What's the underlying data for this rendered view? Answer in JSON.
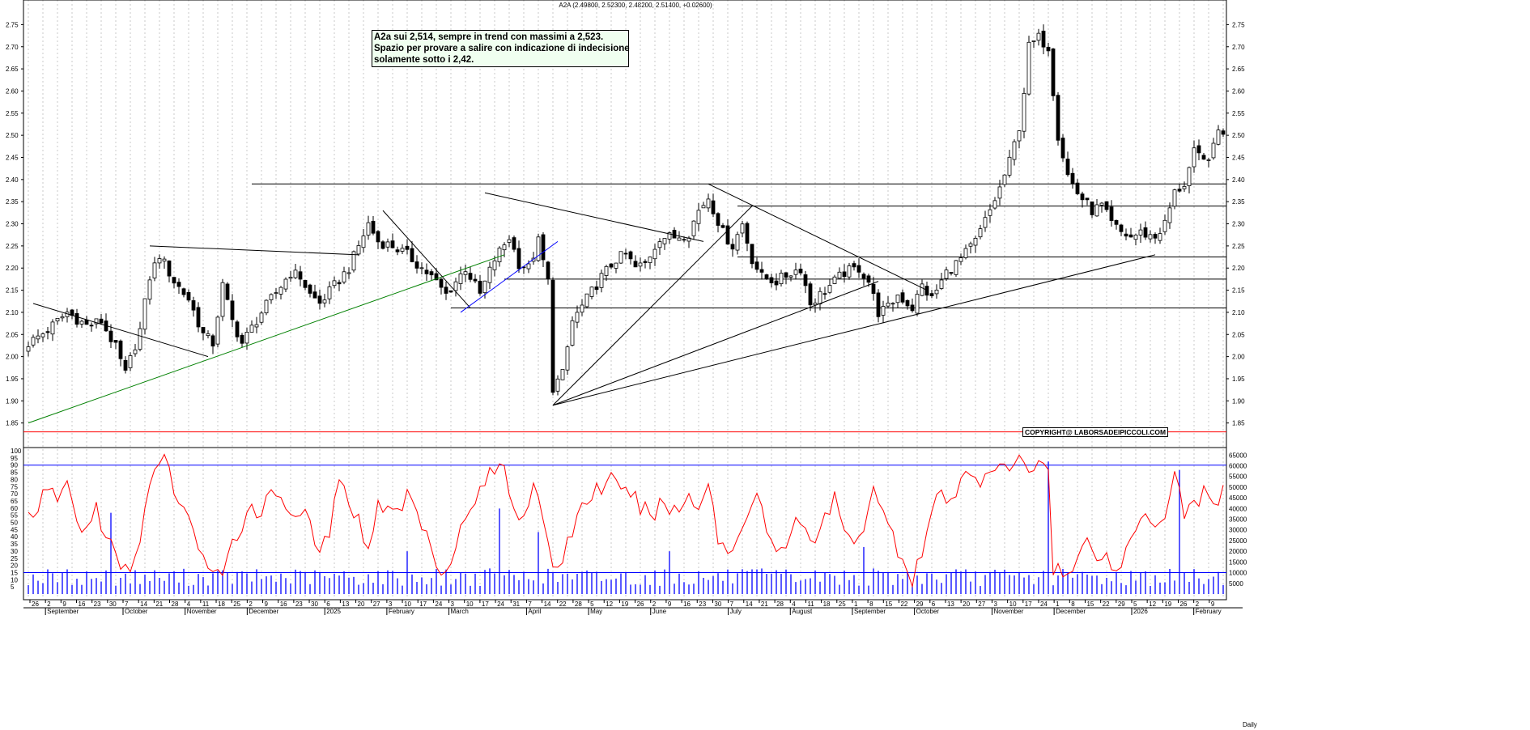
{
  "header": {
    "title": "A2A (2.49800, 2.52300, 2.48200, 2.51400, +0.02600)"
  },
  "annotation": {
    "lines": [
      "A2a sui 2,514, sempre in trend con massimi a 2,523.",
      "Spazio per provare a salire con indicazione di indecisione",
      "solamente sotto i 2,42."
    ]
  },
  "copyright": "COPYRIGHT@ LABORSADEIPICCOLI.COM",
  "chart_data": {
    "type": "candlestick",
    "symbol": "A2A",
    "ohlc_last": {
      "open": 2.498,
      "high": 2.523,
      "low": 2.482,
      "close": 2.514,
      "change": 0.026
    },
    "price_axis": {
      "ylim": [
        1.8,
        2.78
      ],
      "ticks": [
        "1.85",
        "1.90",
        "1.95",
        "2.00",
        "2.05",
        "2.10",
        "2.15",
        "2.20",
        "2.25",
        "2.30",
        "2.35",
        "2.40",
        "2.45",
        "2.50",
        "2.55",
        "2.60",
        "2.65",
        "2.70",
        "2.75"
      ]
    },
    "price_anchors": [
      [
        0,
        2.03
      ],
      [
        4,
        2.06
      ],
      [
        8,
        2.1
      ],
      [
        12,
        2.07
      ],
      [
        15,
        2.08
      ],
      [
        18,
        2.02
      ],
      [
        20,
        1.96
      ],
      [
        23,
        2.06
      ],
      [
        25,
        2.18
      ],
      [
        27,
        2.23
      ],
      [
        30,
        2.17
      ],
      [
        33,
        2.13
      ],
      [
        36,
        2.05
      ],
      [
        38,
        2.03
      ],
      [
        40,
        2.16
      ],
      [
        42,
        2.08
      ],
      [
        44,
        2.03
      ],
      [
        48,
        2.1
      ],
      [
        50,
        2.13
      ],
      [
        54,
        2.19
      ],
      [
        56,
        2.18
      ],
      [
        58,
        2.14
      ],
      [
        60,
        2.12
      ],
      [
        63,
        2.16
      ],
      [
        66,
        2.2
      ],
      [
        70,
        2.3
      ],
      [
        72,
        2.26
      ],
      [
        75,
        2.25
      ],
      [
        78,
        2.23
      ],
      [
        80,
        2.21
      ],
      [
        83,
        2.18
      ],
      [
        86,
        2.14
      ],
      [
        90,
        2.2
      ],
      [
        93,
        2.14
      ],
      [
        96,
        2.22
      ],
      [
        99,
        2.27
      ],
      [
        101,
        2.21
      ],
      [
        103,
        2.2
      ],
      [
        105,
        2.26
      ],
      [
        107,
        2.17
      ],
      [
        108,
        1.93
      ],
      [
        110,
        1.96
      ],
      [
        112,
        2.08
      ],
      [
        115,
        2.13
      ],
      [
        118,
        2.18
      ],
      [
        121,
        2.22
      ],
      [
        123,
        2.23
      ],
      [
        125,
        2.2
      ],
      [
        127,
        2.21
      ],
      [
        130,
        2.27
      ],
      [
        133,
        2.27
      ],
      [
        136,
        2.28
      ],
      [
        138,
        2.33
      ],
      [
        140,
        2.36
      ],
      [
        143,
        2.28
      ],
      [
        145,
        2.25
      ],
      [
        147,
        2.3
      ],
      [
        149,
        2.22
      ],
      [
        151,
        2.18
      ],
      [
        154,
        2.17
      ],
      [
        157,
        2.19
      ],
      [
        159,
        2.2
      ],
      [
        161,
        2.12
      ],
      [
        163,
        2.14
      ],
      [
        166,
        2.17
      ],
      [
        168,
        2.19
      ],
      [
        171,
        2.2
      ],
      [
        173,
        2.17
      ],
      [
        175,
        2.1
      ],
      [
        177,
        2.11
      ],
      [
        179,
        2.14
      ],
      [
        182,
        2.11
      ],
      [
        184,
        2.16
      ],
      [
        186,
        2.13
      ],
      [
        189,
        2.19
      ],
      [
        192,
        2.22
      ],
      [
        195,
        2.26
      ],
      [
        198,
        2.33
      ],
      [
        200,
        2.38
      ],
      [
        202,
        2.44
      ],
      [
        204,
        2.52
      ],
      [
        205,
        2.6
      ],
      [
        206,
        2.7
      ],
      [
        208,
        2.72
      ],
      [
        210,
        2.7
      ],
      [
        212,
        2.5
      ],
      [
        214,
        2.41
      ],
      [
        216,
        2.37
      ],
      [
        219,
        2.33
      ],
      [
        221,
        2.34
      ],
      [
        223,
        2.3
      ],
      [
        225,
        2.28
      ],
      [
        227,
        2.27
      ],
      [
        229,
        2.28
      ],
      [
        232,
        2.27
      ],
      [
        234,
        2.3
      ],
      [
        236,
        2.37
      ],
      [
        238,
        2.39
      ],
      [
        240,
        2.46
      ],
      [
        242,
        2.44
      ],
      [
        244,
        2.47
      ],
      [
        245,
        2.51
      ]
    ],
    "trendlines": [
      {
        "color": "#000000",
        "points": [
          [
            1,
            2.12
          ],
          [
            37,
            2.0
          ]
        ]
      },
      {
        "color": "#000000",
        "points": [
          [
            25,
            2.25
          ],
          [
            68,
            2.23
          ]
        ]
      },
      {
        "color": "#008000",
        "points": [
          [
            0,
            1.85
          ],
          [
            98,
            2.23
          ]
        ]
      },
      {
        "color": "#000000",
        "points": [
          [
            73,
            2.33
          ],
          [
            91,
            2.11
          ]
        ]
      },
      {
        "color": "#0000ff",
        "points": [
          [
            89,
            2.1
          ],
          [
            109,
            2.26
          ]
        ]
      },
      {
        "color": "#000000",
        "points": [
          [
            94,
            2.37
          ],
          [
            139,
            2.26
          ]
        ]
      },
      {
        "color": "#000000",
        "points": [
          [
            108,
            1.89
          ],
          [
            149,
            2.34
          ]
        ]
      },
      {
        "color": "#000000",
        "points": [
          [
            108,
            1.89
          ],
          [
            175,
            2.17
          ]
        ]
      },
      {
        "color": "#000000",
        "points": [
          [
            108,
            1.89
          ],
          [
            232,
            2.23
          ]
        ]
      },
      {
        "color": "#000000",
        "points": [
          [
            140,
            2.39
          ],
          [
            185,
            2.15
          ]
        ]
      }
    ],
    "horizontal_levels": [
      {
        "value": 2.39,
        "from": 46
      },
      {
        "value": 2.34,
        "from": 146
      },
      {
        "value": 2.225,
        "from": 146
      },
      {
        "value": 2.175,
        "from": 98
      },
      {
        "value": 2.11,
        "from": 87
      },
      {
        "value": 1.83,
        "from": 0,
        "color": "#ff0000"
      }
    ],
    "oscillator": {
      "ylim": [
        0,
        100
      ],
      "ticks": [
        "5",
        "10",
        "15",
        "20",
        "25",
        "30",
        "35",
        "40",
        "45",
        "50",
        "55",
        "60",
        "65",
        "70",
        "75",
        "80",
        "85",
        "90",
        "95",
        "100"
      ],
      "levels": [
        90,
        15
      ],
      "anchors": [
        [
          0,
          55
        ],
        [
          2,
          62
        ],
        [
          4,
          70
        ],
        [
          6,
          68
        ],
        [
          8,
          77
        ],
        [
          10,
          50
        ],
        [
          12,
          45
        ],
        [
          14,
          60
        ],
        [
          16,
          40
        ],
        [
          18,
          25
        ],
        [
          20,
          15
        ],
        [
          22,
          25
        ],
        [
          24,
          60
        ],
        [
          26,
          85
        ],
        [
          28,
          92
        ],
        [
          30,
          75
        ],
        [
          32,
          55
        ],
        [
          34,
          48
        ],
        [
          36,
          25
        ],
        [
          38,
          15
        ],
        [
          40,
          8
        ],
        [
          42,
          35
        ],
        [
          44,
          50
        ],
        [
          46,
          62
        ],
        [
          48,
          58
        ],
        [
          50,
          70
        ],
        [
          52,
          72
        ],
        [
          54,
          55
        ],
        [
          56,
          60
        ],
        [
          58,
          45
        ],
        [
          60,
          28
        ],
        [
          62,
          45
        ],
        [
          64,
          75
        ],
        [
          66,
          68
        ],
        [
          68,
          50
        ],
        [
          70,
          35
        ],
        [
          72,
          60
        ],
        [
          74,
          65
        ],
        [
          76,
          55
        ],
        [
          78,
          70
        ],
        [
          80,
          58
        ],
        [
          82,
          40
        ],
        [
          84,
          25
        ],
        [
          86,
          15
        ],
        [
          88,
          38
        ],
        [
          90,
          50
        ],
        [
          92,
          65
        ],
        [
          94,
          80
        ],
        [
          96,
          85
        ],
        [
          98,
          90
        ],
        [
          100,
          60
        ],
        [
          102,
          55
        ],
        [
          104,
          80
        ],
        [
          106,
          45
        ],
        [
          108,
          20
        ],
        [
          110,
          25
        ],
        [
          112,
          45
        ],
        [
          114,
          62
        ],
        [
          116,
          70
        ],
        [
          118,
          75
        ],
        [
          120,
          80
        ],
        [
          122,
          68
        ],
        [
          124,
          72
        ],
        [
          126,
          60
        ],
        [
          128,
          55
        ],
        [
          130,
          62
        ],
        [
          132,
          60
        ],
        [
          134,
          58
        ],
        [
          136,
          70
        ],
        [
          138,
          62
        ],
        [
          140,
          78
        ],
        [
          142,
          40
        ],
        [
          144,
          28
        ],
        [
          146,
          38
        ],
        [
          148,
          60
        ],
        [
          150,
          70
        ],
        [
          152,
          45
        ],
        [
          154,
          25
        ],
        [
          156,
          35
        ],
        [
          158,
          55
        ],
        [
          160,
          48
        ],
        [
          162,
          30
        ],
        [
          164,
          55
        ],
        [
          166,
          65
        ],
        [
          168,
          45
        ],
        [
          170,
          30
        ],
        [
          172,
          50
        ],
        [
          174,
          78
        ],
        [
          176,
          55
        ],
        [
          178,
          40
        ],
        [
          180,
          25
        ],
        [
          182,
          12
        ],
        [
          184,
          30
        ],
        [
          186,
          55
        ],
        [
          188,
          72
        ],
        [
          190,
          60
        ],
        [
          192,
          78
        ],
        [
          194,
          85
        ],
        [
          196,
          80
        ],
        [
          198,
          90
        ],
        [
          200,
          85
        ],
        [
          202,
          88
        ],
        [
          204,
          92
        ],
        [
          206,
          88
        ],
        [
          208,
          92
        ],
        [
          210,
          90
        ],
        [
          211,
          20
        ],
        [
          214,
          12
        ],
        [
          216,
          22
        ],
        [
          218,
          40
        ],
        [
          220,
          30
        ],
        [
          222,
          25
        ],
        [
          224,
          15
        ],
        [
          226,
          30
        ],
        [
          228,
          45
        ],
        [
          230,
          60
        ],
        [
          232,
          50
        ],
        [
          234,
          55
        ],
        [
          236,
          90
        ],
        [
          238,
          55
        ],
        [
          240,
          65
        ],
        [
          242,
          70
        ],
        [
          244,
          60
        ],
        [
          246,
          75
        ]
      ]
    },
    "volume": {
      "ylim": [
        0,
        67000
      ],
      "ticks": [
        "5000",
        "10000",
        "15000",
        "20000",
        "25000",
        "30000",
        "35000",
        "40000",
        "45000",
        "50000",
        "55000",
        "60000",
        "65000"
      ],
      "spikes": [
        [
          17,
          38000
        ],
        [
          78,
          20000
        ],
        [
          97,
          40000
        ],
        [
          105,
          29000
        ],
        [
          132,
          20000
        ],
        [
          172,
          22000
        ],
        [
          210,
          62000
        ],
        [
          237,
          58000
        ]
      ],
      "base": 7500
    },
    "x_axis": {
      "day_ticks": [
        "26",
        "2",
        "9",
        "16",
        "23",
        "30",
        "7",
        "14",
        "21",
        "28",
        "4",
        "11",
        "18",
        "25",
        "2",
        "9",
        "16",
        "23",
        "30",
        "6",
        "13",
        "20",
        "27",
        "3",
        "10",
        "17",
        "24",
        "3",
        "10",
        "17",
        "24",
        "31",
        "7",
        "14",
        "22",
        "28",
        "5",
        "12",
        "19",
        "26",
        "2",
        "9",
        "16",
        "23",
        "30",
        "7",
        "14",
        "21",
        "28",
        "4",
        "11",
        "18",
        "25",
        "1",
        "8",
        "15",
        "22",
        "29",
        "6",
        "13",
        "20",
        "27",
        "3",
        "10",
        "17",
        "24",
        "1",
        "8",
        "15",
        "22",
        "29",
        "5",
        "12",
        "19",
        "26",
        "2",
        "9"
      ],
      "month_labels": [
        {
          "label": "September",
          "tick": 1
        },
        {
          "label": "October",
          "tick": 6
        },
        {
          "label": "November",
          "tick": 10
        },
        {
          "label": "December",
          "tick": 14
        },
        {
          "label": "2025",
          "tick": 19
        },
        {
          "label": "February",
          "tick": 23
        },
        {
          "label": "March",
          "tick": 27
        },
        {
          "label": "April",
          "tick": 32
        },
        {
          "label": "May",
          "tick": 36
        },
        {
          "label": "June",
          "tick": 40
        },
        {
          "label": "July",
          "tick": 45
        },
        {
          "label": "August",
          "tick": 49
        },
        {
          "label": "September",
          "tick": 53
        },
        {
          "label": "October",
          "tick": 57
        },
        {
          "label": "November",
          "tick": 62
        },
        {
          "label": "December",
          "tick": 66
        },
        {
          "label": "2026",
          "tick": 71
        },
        {
          "label": "February",
          "tick": 75
        }
      ],
      "axis_tag": "Daily"
    }
  }
}
